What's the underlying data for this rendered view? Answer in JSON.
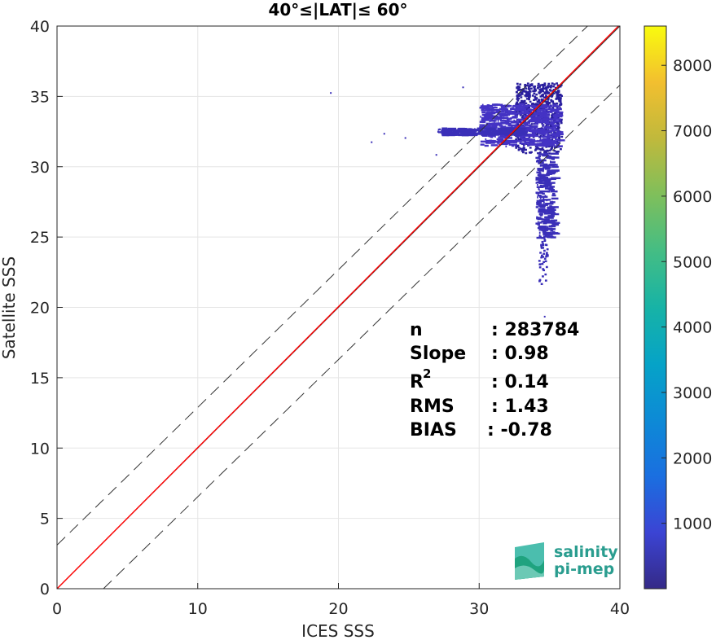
{
  "chart_data": {
    "type": "heatmap",
    "title": "40°≤|LAT|≤ 60°",
    "xlabel": "ICES SSS",
    "ylabel": "Satellite SSS",
    "xlim": [
      0,
      40
    ],
    "ylim": [
      0,
      40
    ],
    "x_ticks": [
      "0",
      "10",
      "20",
      "30",
      "40"
    ],
    "y_ticks": [
      "0",
      "5",
      "10",
      "15",
      "20",
      "25",
      "30",
      "35",
      "40"
    ],
    "grid": true,
    "colorbar": {
      "range": [
        0,
        8600
      ],
      "ticks": [
        "1000",
        "2000",
        "3000",
        "4000",
        "5000",
        "6000",
        "7000",
        "8000"
      ],
      "colormap": "parula"
    },
    "lines": [
      {
        "name": "identity",
        "color": "#333333",
        "style": "solid",
        "points": [
          [
            0,
            0
          ],
          [
            40,
            40
          ]
        ]
      },
      {
        "name": "regression",
        "color": "#ff0000",
        "style": "solid",
        "points": [
          [
            0,
            0
          ],
          [
            40,
            40.1
          ]
        ]
      },
      {
        "name": "upper",
        "color": "#333333",
        "style": "dashed",
        "points": [
          [
            0,
            3.1
          ],
          [
            37.7,
            40
          ]
        ]
      },
      {
        "name": "lower",
        "color": "#333333",
        "style": "dashed",
        "points": [
          [
            3.3,
            0
          ],
          [
            40,
            35.8
          ]
        ]
      }
    ],
    "density_clusters": [
      {
        "x": [
          32.5,
          35.8
        ],
        "y": [
          31.0,
          36.0
        ],
        "level": "high"
      },
      {
        "x": [
          30.0,
          35.5
        ],
        "y": [
          31.5,
          34.5
        ],
        "level": "medium"
      },
      {
        "x": [
          27.0,
          33.0
        ],
        "y": [
          32.3,
          32.8
        ],
        "level": "low"
      },
      {
        "x": [
          34.0,
          35.2
        ],
        "y": [
          25.0,
          31.0
        ],
        "level": "low"
      },
      {
        "x": [
          34.2,
          34.8
        ],
        "y": [
          21.5,
          25.0
        ],
        "level": "sparse"
      }
    ],
    "outliers": [
      [
        19.4,
        35.3
      ],
      [
        28.8,
        35.7
      ],
      [
        22.3,
        31.8
      ],
      [
        23.2,
        32.4
      ],
      [
        24.7,
        32.1
      ],
      [
        26.9,
        30.9
      ],
      [
        34.6,
        19.4
      ]
    ],
    "stats": {
      "n_label": "n",
      "n_value": ": 283784",
      "slope_label": "Slope",
      "slope_value": ": 0.98",
      "r2_label": "R",
      "r2_sup": "2",
      "r2_value": ": 0.14",
      "rms_label": "RMS",
      "rms_value": ": 1.43",
      "bias_label": "BIAS",
      "bias_value": ": -0.78"
    }
  },
  "logo": {
    "line1": "salinity",
    "line2": "pi-mep",
    "colors": [
      "#1fa37f",
      "#2bb3a0",
      "#6cc9b5"
    ]
  },
  "colors": {
    "axis": "#262626",
    "grid": "#e5e5e5",
    "density_low": "#3a2fb8",
    "density_mid": "#4433c4",
    "density_high": "#2a1f9e"
  }
}
